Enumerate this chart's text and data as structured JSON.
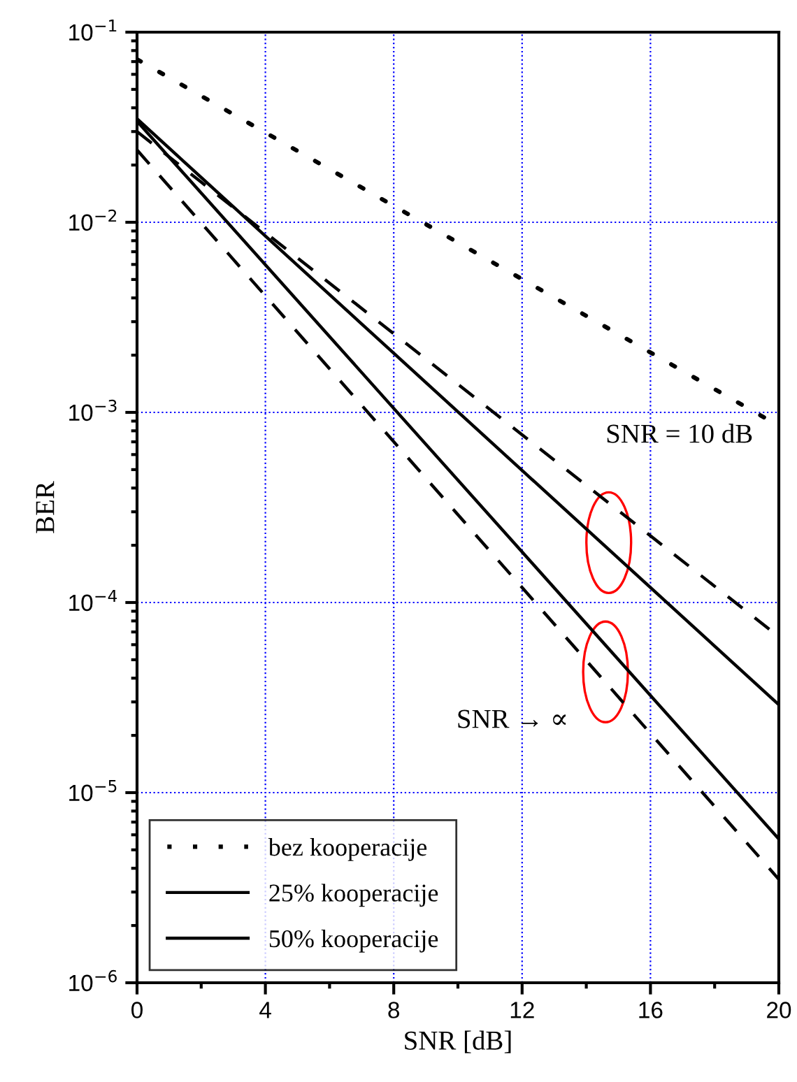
{
  "chart_data": {
    "type": "line",
    "xlabel": "SNR [dB]",
    "ylabel": "BER",
    "log": "y",
    "xlim": [
      0,
      20
    ],
    "xticks": [
      0,
      4,
      8,
      12,
      16,
      20
    ],
    "ylim": [
      1e-06,
      0.1
    ],
    "yticks": [
      {
        "value": 1e-06,
        "label": "10$^{−6}$"
      },
      {
        "value": 1e-05,
        "label": "10$^{−5}$"
      },
      {
        "value": 0.0001,
        "label": "10$^{−4}$"
      },
      {
        "value": 0.001,
        "label": "10$^{−3}$"
      },
      {
        "value": 0.01,
        "label": "10$^{−2}$"
      },
      {
        "value": 0.1,
        "label": "10$^{−1}$"
      }
    ],
    "x": [
      0,
      20
    ],
    "grid": true,
    "legend": "bottom left",
    "marker": "none",
    "series": [
      {
        "name": "bez kooperacije",
        "color": "#000000",
        "line_style": "dotted",
        "values": [
          0.072,
          0.00085
        ]
      },
      {
        "name": "25% kooperacije",
        "color": "#000000",
        "line_style": "solid",
        "values": [
          0.035,
          2.9e-05
        ]
      },
      {
        "name": "50% kooperacije",
        "color": "#000000",
        "line_style": "solid",
        "values": [
          0.034,
          5.7e-06
        ]
      },
      {
        "color": "#000000",
        "line_style": "dashed",
        "values": [
          0.03,
          6.6e-05
        ]
      },
      {
        "color": "#000000",
        "line_style": "dashed",
        "values": [
          0.024,
          3.5e-06
        ]
      }
    ],
    "annotations": [
      "SNR = 10 dB",
      "SNR → ∝"
    ]
  }
}
